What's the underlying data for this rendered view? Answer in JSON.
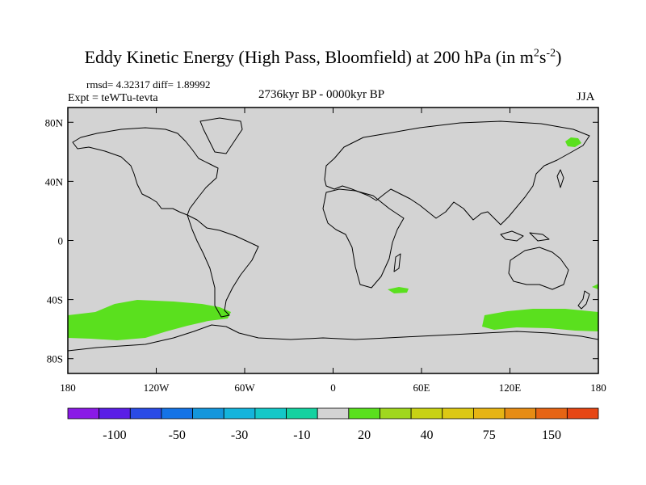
{
  "header": {
    "title_main": "Eddy Kinetic Energy (High Pass, Bloomfield) at 200 hPa (in m",
    "title_exp1": "2",
    "title_unit_s": "s",
    "title_exp2": "-2",
    "title_close": ")",
    "stats": "rmsd= 4.32317 diff= 1.89992",
    "experiment": "Expt = teWTu-tevta",
    "period": "2736kyr BP - 0000kyr BP",
    "season": "JJA"
  },
  "map": {
    "background_color": "#d3d3d3",
    "lon_ticks": [
      "180",
      "120W",
      "60W",
      "0",
      "60E",
      "120E",
      "180"
    ],
    "lat_ticks": [
      "80N",
      "40N",
      "0",
      "40S",
      "80S"
    ],
    "regions": [
      {
        "name": "south-pacific-positive-anomaly",
        "level": "20",
        "color": "#5ae01e"
      },
      {
        "name": "australia-south-positive-anomaly",
        "level": "20",
        "color": "#5ae01e"
      },
      {
        "name": "indian-ocean-positive-anomaly",
        "level": "20",
        "color": "#5ae01e"
      },
      {
        "name": "east-siberia-positive-anomaly",
        "level": "20",
        "color": "#5ae01e"
      },
      {
        "name": "south-pacific-dateline-positive-anomaly",
        "level": "20",
        "color": "#5ae01e"
      }
    ]
  },
  "colorbar": {
    "colors": [
      "#8a1ae6",
      "#5a1ee6",
      "#2a4be6",
      "#1473e6",
      "#1496dc",
      "#14b4dc",
      "#14c8c8",
      "#14d2a0",
      "#d3d3d3",
      "#5ae01e",
      "#a0d71e",
      "#c8d214",
      "#dcc814",
      "#e6b414",
      "#e68c14",
      "#e66414",
      "#e64614"
    ],
    "labels": [
      "-100",
      "-50",
      "-30",
      "-10",
      "20",
      "40",
      "75",
      "150"
    ]
  }
}
